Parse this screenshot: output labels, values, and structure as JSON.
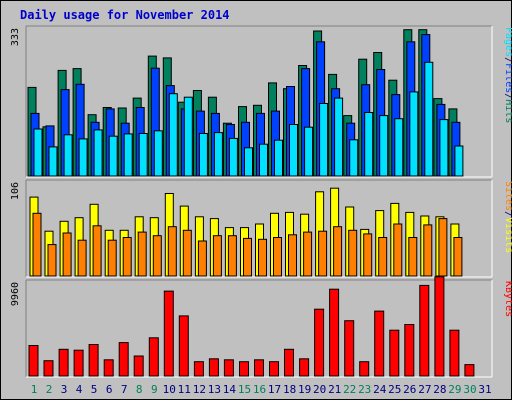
{
  "title": "Daily usage for November 2014",
  "colors": {
    "hits": "#00805c",
    "files": "#0040ff",
    "pages": "#00e0ff",
    "visits": "#ffff00",
    "sites": "#ff8000",
    "kbytes": "#ff0000",
    "weekend_day": "#00805c",
    "weekday": "#000080"
  },
  "chart_data": [
    {
      "type": "bar",
      "panel": "hits-files-pages",
      "y_max_label": "333",
      "ylim": [
        0,
        333
      ],
      "right_labels": [
        {
          "text": "Hits",
          "color": "#00805c"
        },
        {
          "text": "/",
          "color": "#000080"
        },
        {
          "text": "Files",
          "color": "#0040ff"
        },
        {
          "text": "/",
          "color": "#000080"
        },
        {
          "text": "Pages",
          "color": "#00e0ff"
        }
      ],
      "categories": [
        "1",
        "2",
        "3",
        "4",
        "5",
        "6",
        "7",
        "8",
        "9",
        "10",
        "11",
        "12",
        "13",
        "14",
        "15",
        "16",
        "17",
        "18",
        "19",
        "20",
        "21",
        "22",
        "23",
        "24",
        "25",
        "26",
        "27",
        "28",
        "29",
        "30",
        "31"
      ],
      "series": [
        {
          "name": "Hits",
          "values": [
            198,
            110,
            236,
            240,
            137,
            153,
            152,
            174,
            268,
            264,
            165,
            191,
            176,
            118,
            155,
            158,
            208,
            195,
            247,
            324,
            227,
            135,
            261,
            276,
            214,
            327,
            327,
            173,
            150,
            0,
            0
          ]
        },
        {
          "name": "Files",
          "values": [
            140,
            112,
            193,
            205,
            120,
            150,
            118,
            153,
            241,
            202,
            150,
            145,
            140,
            115,
            120,
            140,
            145,
            200,
            240,
            300,
            195,
            118,
            204,
            238,
            182,
            300,
            316,
            160,
            120,
            0,
            0
          ]
        },
        {
          "name": "Pages",
          "values": [
            105,
            65,
            92,
            83,
            103,
            89,
            94,
            95,
            101,
            184,
            176,
            95,
            97,
            84,
            63,
            71,
            80,
            115,
            109,
            162,
            174,
            81,
            142,
            135,
            128,
            188,
            254,
            126,
            67,
            0,
            0
          ]
        }
      ]
    },
    {
      "type": "bar",
      "panel": "visits-sites",
      "y_max_label": "106",
      "ylim": [
        0,
        106
      ],
      "right_labels": [
        {
          "text": "Visits",
          "color": "#ffff00"
        },
        {
          "text": "/",
          "color": "#000080"
        },
        {
          "text": "Sites",
          "color": "#ff8000"
        }
      ],
      "categories": [
        "1",
        "2",
        "3",
        "4",
        "5",
        "6",
        "7",
        "8",
        "9",
        "10",
        "11",
        "12",
        "13",
        "14",
        "15",
        "16",
        "17",
        "18",
        "19",
        "20",
        "21",
        "22",
        "23",
        "24",
        "25",
        "26",
        "27",
        "28",
        "29",
        "30",
        "31"
      ],
      "series": [
        {
          "name": "Visits",
          "values": [
            88,
            50,
            61,
            65,
            80,
            51,
            51,
            66,
            65,
            92,
            78,
            66,
            64,
            54,
            54,
            58,
            70,
            71,
            69,
            94,
            98,
            77,
            52,
            73,
            81,
            71,
            67,
            66,
            58,
            0,
            0
          ]
        },
        {
          "name": "Sites",
          "values": [
            70,
            35,
            48,
            40,
            56,
            40,
            43,
            49,
            45,
            55,
            51,
            39,
            45,
            45,
            42,
            41,
            43,
            46,
            49,
            50,
            55,
            51,
            47,
            43,
            58,
            43,
            57,
            64,
            43,
            0,
            0
          ]
        }
      ]
    },
    {
      "type": "bar",
      "panel": "kbytes",
      "y_max_label": "9960",
      "ylim": [
        0,
        9960
      ],
      "right_labels": [
        {
          "text": "KBytes",
          "color": "#ff0000"
        }
      ],
      "categories": [
        "1",
        "2",
        "3",
        "4",
        "5",
        "6",
        "7",
        "8",
        "9",
        "10",
        "11",
        "12",
        "13",
        "14",
        "15",
        "16",
        "17",
        "18",
        "19",
        "20",
        "21",
        "22",
        "23",
        "24",
        "25",
        "26",
        "27",
        "28",
        "29",
        "30",
        "31"
      ],
      "series": [
        {
          "name": "KBytes",
          "values": [
            3200,
            1600,
            2800,
            2700,
            3300,
            1700,
            3500,
            2100,
            4000,
            8900,
            6300,
            1500,
            1800,
            1700,
            1500,
            1700,
            1500,
            2800,
            1800,
            7000,
            9100,
            5800,
            1500,
            6800,
            4800,
            5400,
            9500,
            10400,
            4800,
            1200,
            0
          ]
        }
      ]
    }
  ],
  "x_axis": {
    "labels": [
      "1",
      "2",
      "3",
      "4",
      "5",
      "6",
      "7",
      "8",
      "9",
      "10",
      "11",
      "12",
      "13",
      "14",
      "15",
      "16",
      "17",
      "18",
      "19",
      "20",
      "21",
      "22",
      "23",
      "24",
      "25",
      "26",
      "27",
      "28",
      "29",
      "30",
      "31"
    ],
    "weekend": [
      1,
      2,
      8,
      9,
      15,
      16,
      22,
      23,
      29,
      30
    ]
  }
}
